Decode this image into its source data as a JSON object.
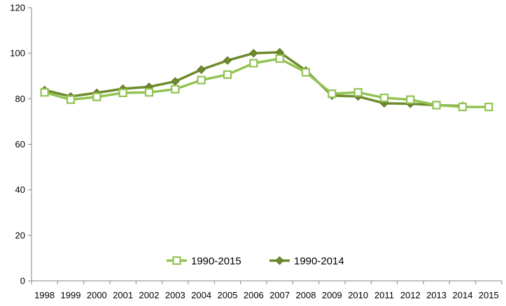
{
  "chart_data": {
    "type": "line",
    "categories": [
      "1998",
      "1999",
      "2000",
      "2001",
      "2002",
      "2003",
      "2004",
      "2005",
      "2006",
      "2007",
      "2008",
      "2009",
      "2010",
      "2011",
      "2012",
      "2013",
      "2014",
      "2015"
    ],
    "ylim": [
      0,
      120
    ],
    "yticks": [
      0,
      20,
      40,
      60,
      80,
      100,
      120
    ],
    "grid": false,
    "legend": "bottom-center",
    "series": [
      {
        "name": "1990-2015",
        "color": "#92c353",
        "marker": "square-hollow",
        "values": [
          82.8,
          79.6,
          80.8,
          82.6,
          82.8,
          84.2,
          88.2,
          90.6,
          95.6,
          97.6,
          91.6,
          82.2,
          82.8,
          80.4,
          79.6,
          77.2,
          76.4,
          76.4
        ]
      },
      {
        "name": "1990-2014",
        "color": "#6e8b2c",
        "marker": "diamond-filled",
        "values": [
          83.8,
          81.0,
          82.6,
          84.4,
          85.2,
          87.6,
          92.8,
          96.8,
          100.0,
          100.4,
          92.4,
          81.4,
          81.0,
          78.0,
          77.8,
          77.2,
          76.8,
          null
        ]
      }
    ]
  }
}
